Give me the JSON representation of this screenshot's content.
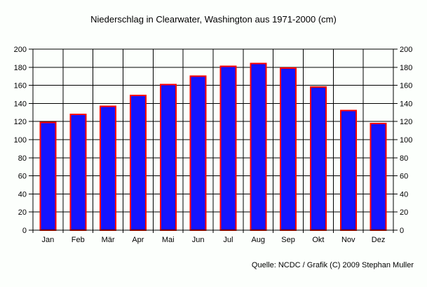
{
  "footer": {
    "credit": "Quelle: NCDC / Grafik (C) 2009 Stephan Muller"
  },
  "colors": {
    "background": "#FCFFFC",
    "bar_fill": "#1414FF",
    "bar_border": "#FF0000",
    "grid": "#000000",
    "text": "#000000"
  },
  "chart_data": {
    "type": "bar",
    "title": "Niederschlag in Clearwater, Washington aus 1971-2000 (cm)",
    "categories": [
      "Jan",
      "Feb",
      "Mär",
      "Apr",
      "Mai",
      "Jun",
      "Jul",
      "Aug",
      "Sep",
      "Okt",
      "Nov",
      "Dez"
    ],
    "values": [
      119,
      128,
      137,
      149,
      161,
      170,
      181,
      184,
      179,
      158,
      132,
      118
    ],
    "xlabel": "",
    "ylabel": "",
    "ylim": [
      0,
      200
    ],
    "ytick_step": 20,
    "grid": true,
    "dual_y_axis": true,
    "legend_position": "none"
  }
}
